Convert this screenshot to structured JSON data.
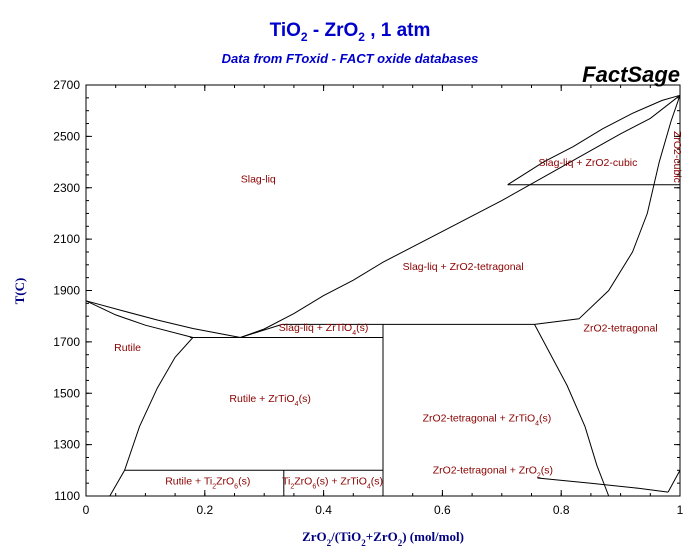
{
  "colors": {
    "title": "#0000cc",
    "subtitle": "#0000cc",
    "axis_titles": "#000080",
    "region_labels": "#8b0000",
    "lines": "#000000"
  },
  "brand": "FactSage",
  "chart_data": {
    "type": "phase-diagram",
    "title": "TiO2 - ZrO2 , 1 atm",
    "title_parts": [
      {
        "t": "TiO"
      },
      {
        "t": "2",
        "sub": true
      },
      {
        "t": " - ZrO"
      },
      {
        "t": "2",
        "sub": true
      },
      {
        "t": " , 1 atm"
      }
    ],
    "subtitle": "Data from FToxid - FACT oxide databases",
    "xlabel": "ZrO2/(TiO2+ZrO2) (mol/mol)",
    "xlabel_parts": [
      {
        "t": "ZrO"
      },
      {
        "t": "2",
        "sub": true
      },
      {
        "t": "/(TiO"
      },
      {
        "t": "2",
        "sub": true
      },
      {
        "t": "+ZrO"
      },
      {
        "t": "2",
        "sub": true
      },
      {
        "t": ") (mol/mol)"
      }
    ],
    "ylabel": "T(C)",
    "xlim": [
      0,
      1
    ],
    "ylim": [
      1100,
      2700
    ],
    "xticks": [
      0,
      0.2,
      0.4,
      0.6,
      0.8,
      1
    ],
    "xtick_labels": [
      "0",
      "0.2",
      "0.4",
      "0.6",
      "0.8",
      "1"
    ],
    "yticks": [
      1100,
      1300,
      1500,
      1700,
      1900,
      2100,
      2300,
      2500,
      2700
    ],
    "ytick_labels": [
      "1100",
      "1300",
      "1500",
      "1700",
      "1900",
      "2100",
      "2300",
      "2500",
      "2700"
    ],
    "grid": false,
    "boundaries": [
      {
        "name": "liquidus-left",
        "points": [
          [
            0,
            1860
          ],
          [
            0.06,
            1822
          ],
          [
            0.12,
            1785
          ],
          [
            0.18,
            1752
          ],
          [
            0.26,
            1717
          ]
        ]
      },
      {
        "name": "rutile-solvus-upper",
        "points": [
          [
            0,
            1860
          ],
          [
            0.05,
            1805
          ],
          [
            0.1,
            1765
          ],
          [
            0.18,
            1717
          ]
        ]
      },
      {
        "name": "rutile-solvus-lower",
        "points": [
          [
            0.18,
            1717
          ],
          [
            0.15,
            1640
          ],
          [
            0.12,
            1520
          ],
          [
            0.09,
            1370
          ],
          [
            0.065,
            1200
          ],
          [
            0.04,
            1100
          ]
        ]
      },
      {
        "name": "liquidus-right",
        "points": [
          [
            0.26,
            1717
          ],
          [
            0.3,
            1750
          ],
          [
            0.35,
            1810
          ],
          [
            0.4,
            1880
          ],
          [
            0.45,
            1940
          ],
          [
            0.5,
            2010
          ],
          [
            0.6,
            2130
          ],
          [
            0.7,
            2250
          ],
          [
            0.8,
            2380
          ],
          [
            0.9,
            2510
          ],
          [
            0.95,
            2570
          ],
          [
            1.0,
            2660
          ]
        ]
      },
      {
        "name": "zrtio4-liq-left",
        "points": [
          [
            0.26,
            1717
          ],
          [
            0.33,
            1768
          ]
        ]
      },
      {
        "name": "peritectic-horizontal",
        "points": [
          [
            0.33,
            1768
          ],
          [
            0.755,
            1768
          ]
        ]
      },
      {
        "name": "eutectic-horizontal",
        "points": [
          [
            0.175,
            1717
          ],
          [
            0.5,
            1717
          ]
        ]
      },
      {
        "name": "zrtio4-vertical",
        "points": [
          [
            0.5,
            1768
          ],
          [
            0.5,
            1100
          ]
        ]
      },
      {
        "name": "monotectoid-horizontal",
        "points": [
          [
            0.065,
            1200
          ],
          [
            0.5,
            1200
          ]
        ]
      },
      {
        "name": "ti2zro6-vertical",
        "points": [
          [
            0.333,
            1200
          ],
          [
            0.333,
            1100
          ]
        ]
      },
      {
        "name": "tetragonal-solvus",
        "points": [
          [
            0.755,
            1768
          ],
          [
            0.78,
            1660
          ],
          [
            0.81,
            1530
          ],
          [
            0.84,
            1370
          ],
          [
            0.86,
            1220
          ],
          [
            0.88,
            1100
          ]
        ]
      },
      {
        "name": "cubic-horizontal",
        "points": [
          [
            0.71,
            2312
          ],
          [
            1.0,
            2312
          ]
        ]
      },
      {
        "name": "cubic-solvus-left",
        "points": [
          [
            0.71,
            2312
          ],
          [
            0.77,
            2400
          ],
          [
            0.82,
            2460
          ],
          [
            0.87,
            2530
          ],
          [
            0.92,
            2590
          ],
          [
            0.97,
            2640
          ],
          [
            1.0,
            2660
          ]
        ]
      },
      {
        "name": "cubic-tetragonal-boundary",
        "points": [
          [
            1.0,
            2660
          ],
          [
            0.985,
            2560
          ],
          [
            0.965,
            2400
          ],
          [
            0.945,
            2200
          ],
          [
            0.92,
            2050
          ],
          [
            0.88,
            1900
          ],
          [
            0.83,
            1790
          ],
          [
            0.755,
            1768
          ]
        ]
      },
      {
        "name": "zro2-s-line",
        "points": [
          [
            0.76,
            1170
          ],
          [
            0.85,
            1150
          ],
          [
            0.93,
            1130
          ],
          [
            0.98,
            1115
          ]
        ]
      },
      {
        "name": "right-edge-segment",
        "points": [
          [
            0.98,
            1115
          ],
          [
            1.0,
            1200
          ]
        ]
      }
    ],
    "regions": [
      {
        "label": [
          {
            "t": "Slag-liq"
          }
        ],
        "x": 0.29,
        "y": 2320
      },
      {
        "label": [
          {
            "t": "Rutile"
          }
        ],
        "x": 0.07,
        "y": 1665
      },
      {
        "label": [
          {
            "t": "Slag-liq + ZrTiO"
          },
          {
            "t": "4",
            "sub": true
          },
          {
            "t": "(s)"
          }
        ],
        "x": 0.4,
        "y": 1742
      },
      {
        "label": [
          {
            "t": "Rutile + ZrTiO"
          },
          {
            "t": "4",
            "sub": true
          },
          {
            "t": "(s)"
          }
        ],
        "x": 0.31,
        "y": 1465
      },
      {
        "label": [
          {
            "t": "Rutile + Ti"
          },
          {
            "t": "2",
            "sub": true
          },
          {
            "t": "ZrO"
          },
          {
            "t": "6",
            "sub": true
          },
          {
            "t": "(s)"
          }
        ],
        "x": 0.205,
        "y": 1145
      },
      {
        "label": [
          {
            "t": "Ti"
          },
          {
            "t": "2",
            "sub": true
          },
          {
            "t": "ZrO"
          },
          {
            "t": "6",
            "sub": true
          },
          {
            "t": "(s) + ZrTiO"
          },
          {
            "t": "4",
            "sub": true
          },
          {
            "t": "(s)"
          }
        ],
        "x": 0.415,
        "y": 1145
      },
      {
        "label": [
          {
            "t": "Slag-liq + ZrO2-tetragonal"
          }
        ],
        "x": 0.635,
        "y": 1980
      },
      {
        "label": [
          {
            "t": "ZrO2-tetragonal"
          }
        ],
        "x": 0.9,
        "y": 1740
      },
      {
        "label": [
          {
            "t": "ZrO2-tetragonal + ZrTiO"
          },
          {
            "t": "4",
            "sub": true
          },
          {
            "t": "(s)"
          }
        ],
        "x": 0.675,
        "y": 1390
      },
      {
        "label": [
          {
            "t": "ZrO2-tetragonal + ZrO"
          },
          {
            "t": "2",
            "sub": true
          },
          {
            "t": "(s)"
          }
        ],
        "x": 0.685,
        "y": 1188
      },
      {
        "label": [
          {
            "t": "Slag-liq + ZrO2-cubic"
          }
        ],
        "x": 0.845,
        "y": 2385
      }
    ],
    "vertical_labels": [
      {
        "label": "ZrO2-cubic",
        "x": 0.99,
        "y": 2420
      }
    ]
  }
}
